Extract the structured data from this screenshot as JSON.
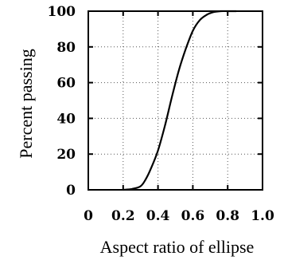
{
  "chart_data": {
    "type": "line",
    "title": "",
    "xlabel": "Aspect ratio of ellipse",
    "ylabel": "Percent passing",
    "xlim": [
      0,
      1.0
    ],
    "ylim": [
      0,
      100
    ],
    "xticks": [
      0,
      0.2,
      0.4,
      0.6,
      0.8,
      1.0
    ],
    "xtick_labels": [
      "0",
      "0.2",
      "0.4",
      "0.6",
      "0.8",
      "1.0"
    ],
    "yticks": [
      0,
      20,
      40,
      60,
      80,
      100
    ],
    "ytick_labels": [
      "0",
      "20",
      "40",
      "60",
      "80",
      "100"
    ],
    "grid": true,
    "legend": "none",
    "series": [
      {
        "x": [
          0.2,
          0.25,
          0.3,
          0.33,
          0.36,
          0.4,
          0.44,
          0.48,
          0.52,
          0.56,
          0.6,
          0.64,
          0.68,
          0.72,
          0.76,
          0.8,
          0.85
        ],
        "y": [
          0,
          0.5,
          2,
          6,
          12,
          22,
          36,
          52,
          67,
          79,
          89,
          95,
          98,
          99.5,
          100,
          100,
          100
        ]
      }
    ]
  }
}
